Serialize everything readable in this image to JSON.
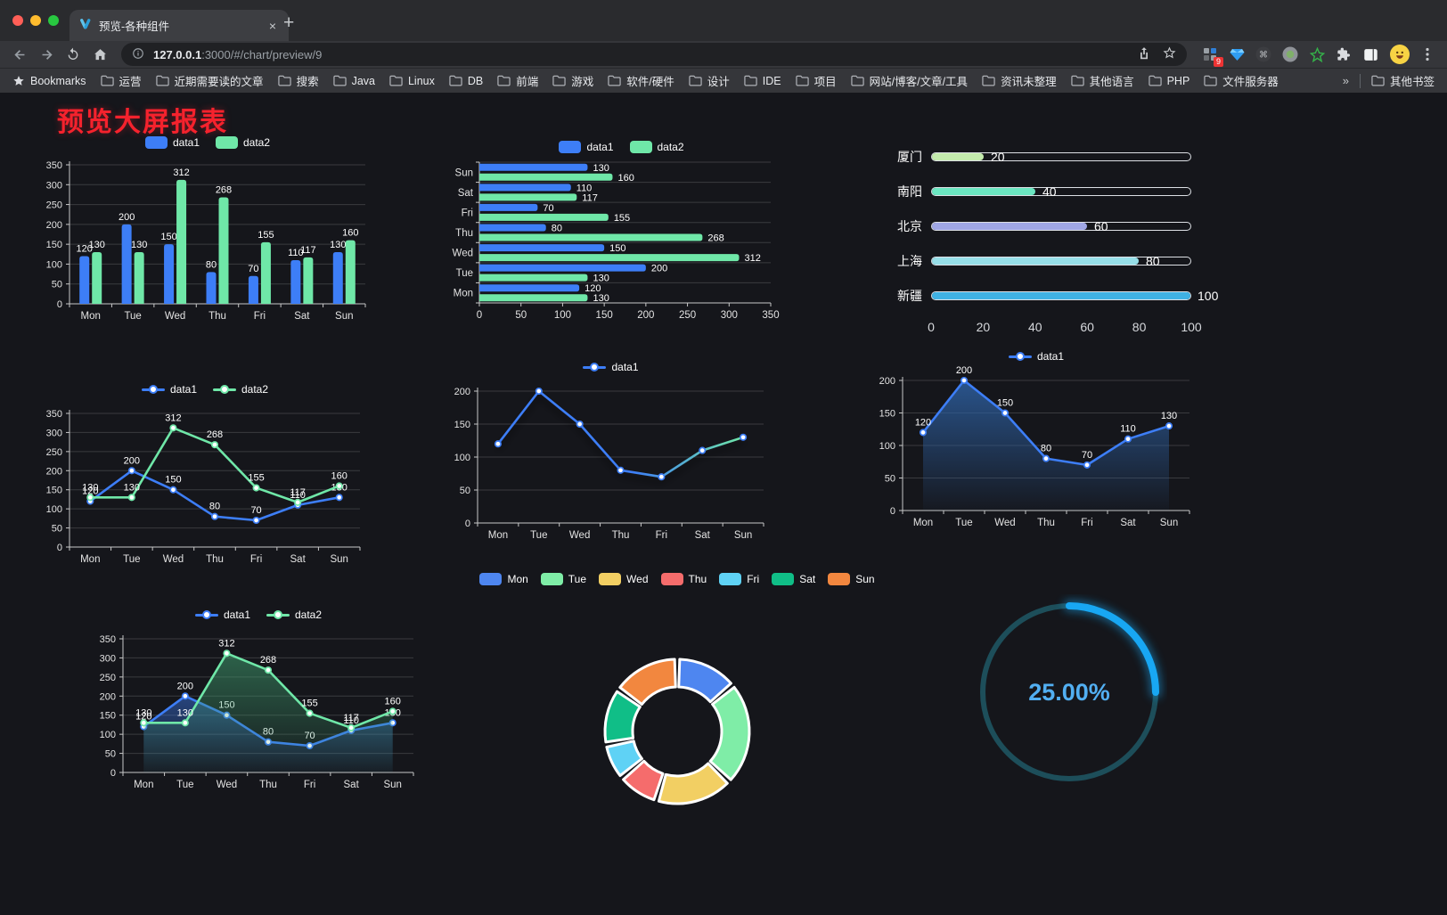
{
  "browser": {
    "tab": {
      "title": "预览-各种组件",
      "close_glyph": "×",
      "new_tab_glyph": "+"
    },
    "address": {
      "host": "127.0.0.1",
      "rest": ":3000/#/chart/preview/9"
    },
    "extensions_badge": "9",
    "bookmarks_bar": {
      "label": "Bookmarks",
      "folders": [
        "运营",
        "近期需要读的文章",
        "搜索",
        "Java",
        "Linux",
        "DB",
        "前端",
        "游戏",
        "软件/硬件",
        "设计",
        "IDE",
        "项目",
        "网站/博客/文章/工具",
        "资讯未整理",
        "其他语言",
        "PHP",
        "文件服务器"
      ],
      "overflow": "»",
      "other": "其他书签"
    }
  },
  "page": {
    "title": "预览大屏报表",
    "title_color": "#f5222d",
    "background": "#15161b"
  },
  "palette": {
    "data1_blue": "#3D7EF7",
    "data2_green": "#6FE7A8"
  },
  "chart_data": [
    {
      "id": "c1",
      "type": "bar",
      "legend": "bar",
      "categories": [
        "Mon",
        "Tue",
        "Wed",
        "Thu",
        "Fri",
        "Sat",
        "Sun"
      ],
      "series": [
        {
          "name": "data1",
          "color": "#3D7EF7",
          "values": [
            120,
            200,
            150,
            80,
            70,
            110,
            130
          ]
        },
        {
          "name": "data2",
          "color": "#6FE7A8",
          "values": [
            130,
            130,
            312,
            268,
            155,
            117,
            160
          ]
        }
      ],
      "ylim": [
        0,
        350
      ],
      "yticks": [
        0,
        50,
        100,
        150,
        200,
        250,
        300,
        350
      ],
      "value_labels": true
    },
    {
      "id": "c2",
      "type": "hbar",
      "legend": "bar",
      "categories": [
        "Mon",
        "Tue",
        "Wed",
        "Thu",
        "Fri",
        "Sat",
        "Sun"
      ],
      "display_order_top_to_bottom": [
        "Sun",
        "Sat",
        "Fri",
        "Thu",
        "Wed",
        "Tue",
        "Mon"
      ],
      "series": [
        {
          "name": "data1",
          "color": "#3D7EF7",
          "values": [
            120,
            200,
            150,
            80,
            70,
            110,
            130
          ]
        },
        {
          "name": "data2",
          "color": "#6FE7A8",
          "values": [
            130,
            130,
            312,
            268,
            155,
            117,
            160
          ]
        }
      ],
      "xlim": [
        0,
        350
      ],
      "xticks": [
        0,
        50,
        100,
        150,
        200,
        250,
        300,
        350
      ],
      "value_labels": true
    },
    {
      "id": "c3",
      "type": "capsule",
      "categories": [
        "厦门",
        "南阳",
        "北京",
        "上海",
        "新疆"
      ],
      "values": [
        20,
        40,
        60,
        80,
        100
      ],
      "colors": [
        "#C4EBAD",
        "#6BE6C1",
        "#A0A7E6",
        "#96DEE8",
        "#3FB1E3"
      ],
      "xlim": [
        0,
        100
      ],
      "xticks": [
        0,
        20,
        40,
        60,
        80,
        100
      ]
    },
    {
      "id": "c4",
      "type": "line",
      "legend": "line",
      "categories": [
        "Mon",
        "Tue",
        "Wed",
        "Thu",
        "Fri",
        "Sat",
        "Sun"
      ],
      "series": [
        {
          "name": "data1",
          "color": "#3D7EF7",
          "values": [
            120,
            200,
            150,
            80,
            70,
            110,
            130
          ],
          "labels": true
        },
        {
          "name": "data2",
          "color": "#6FE7A8",
          "values": [
            130,
            130,
            312,
            268,
            155,
            117,
            160
          ],
          "labels": true
        }
      ],
      "ylim": [
        0,
        350
      ],
      "yticks": [
        0,
        50,
        100,
        150,
        200,
        250,
        300,
        350
      ]
    },
    {
      "id": "c5",
      "type": "line",
      "legend": "line",
      "shadow": true,
      "categories": [
        "Mon",
        "Tue",
        "Wed",
        "Thu",
        "Fri",
        "Sat",
        "Sun"
      ],
      "series": [
        {
          "name": "data1",
          "color": "#3D7EF7",
          "gradient": [
            "#3D7EF7",
            "#6FE7A8"
          ],
          "values": [
            120,
            200,
            150,
            80,
            70,
            110,
            130
          ],
          "labels": false
        }
      ],
      "ylim": [
        0,
        200
      ],
      "yticks": [
        0,
        50,
        100,
        150,
        200
      ]
    },
    {
      "id": "c6",
      "type": "line",
      "legend": "line",
      "categories": [
        "Mon",
        "Tue",
        "Wed",
        "Thu",
        "Fri",
        "Sat",
        "Sun"
      ],
      "series": [
        {
          "name": "data1",
          "color": "#3D7EF7",
          "values": [
            120,
            200,
            150,
            80,
            70,
            110,
            130
          ],
          "labels": true,
          "area": [
            "rgba(45,95,160,0.85)",
            "rgba(45,95,160,0.04)"
          ]
        }
      ],
      "ylim": [
        0,
        200
      ],
      "yticks": [
        0,
        50,
        100,
        150,
        200
      ]
    },
    {
      "id": "c7",
      "type": "line",
      "legend": "line",
      "categories": [
        "Mon",
        "Tue",
        "Wed",
        "Thu",
        "Fri",
        "Sat",
        "Sun"
      ],
      "series": [
        {
          "name": "data1",
          "color": "#3D7EF7",
          "values": [
            120,
            200,
            150,
            80,
            70,
            110,
            130
          ],
          "labels": true,
          "area": [
            "rgba(61,126,247,0.45)",
            "rgba(61,126,247,0.03)"
          ]
        },
        {
          "name": "data2",
          "color": "#6FE7A8",
          "values": [
            130,
            130,
            312,
            268,
            155,
            117,
            160
          ],
          "labels": true,
          "area": [
            "rgba(64,160,112,0.55)",
            "rgba(64,160,112,0.04)"
          ]
        }
      ],
      "ylim": [
        0,
        350
      ],
      "yticks": [
        0,
        50,
        100,
        150,
        200,
        250,
        300,
        350
      ]
    },
    {
      "id": "c8",
      "type": "pie",
      "legend": "pie",
      "categories": [
        "Mon",
        "Tue",
        "Wed",
        "Thu",
        "Fri",
        "Sat",
        "Sun"
      ],
      "values": [
        120,
        200,
        150,
        80,
        70,
        110,
        130
      ],
      "colors": [
        "#4E86F0",
        "#7FEDA7",
        "#F2CF63",
        "#F56C6C",
        "#5FD2F5",
        "#10BE87",
        "#F2873F"
      ],
      "inner_radius": 50,
      "outer_radius": 81
    },
    {
      "id": "c9",
      "type": "gauge",
      "value": 25,
      "label": "25.00%",
      "track_color": "#1d4e5a",
      "progress_color": "#18a7f3",
      "text_color": "#52aff2"
    }
  ]
}
